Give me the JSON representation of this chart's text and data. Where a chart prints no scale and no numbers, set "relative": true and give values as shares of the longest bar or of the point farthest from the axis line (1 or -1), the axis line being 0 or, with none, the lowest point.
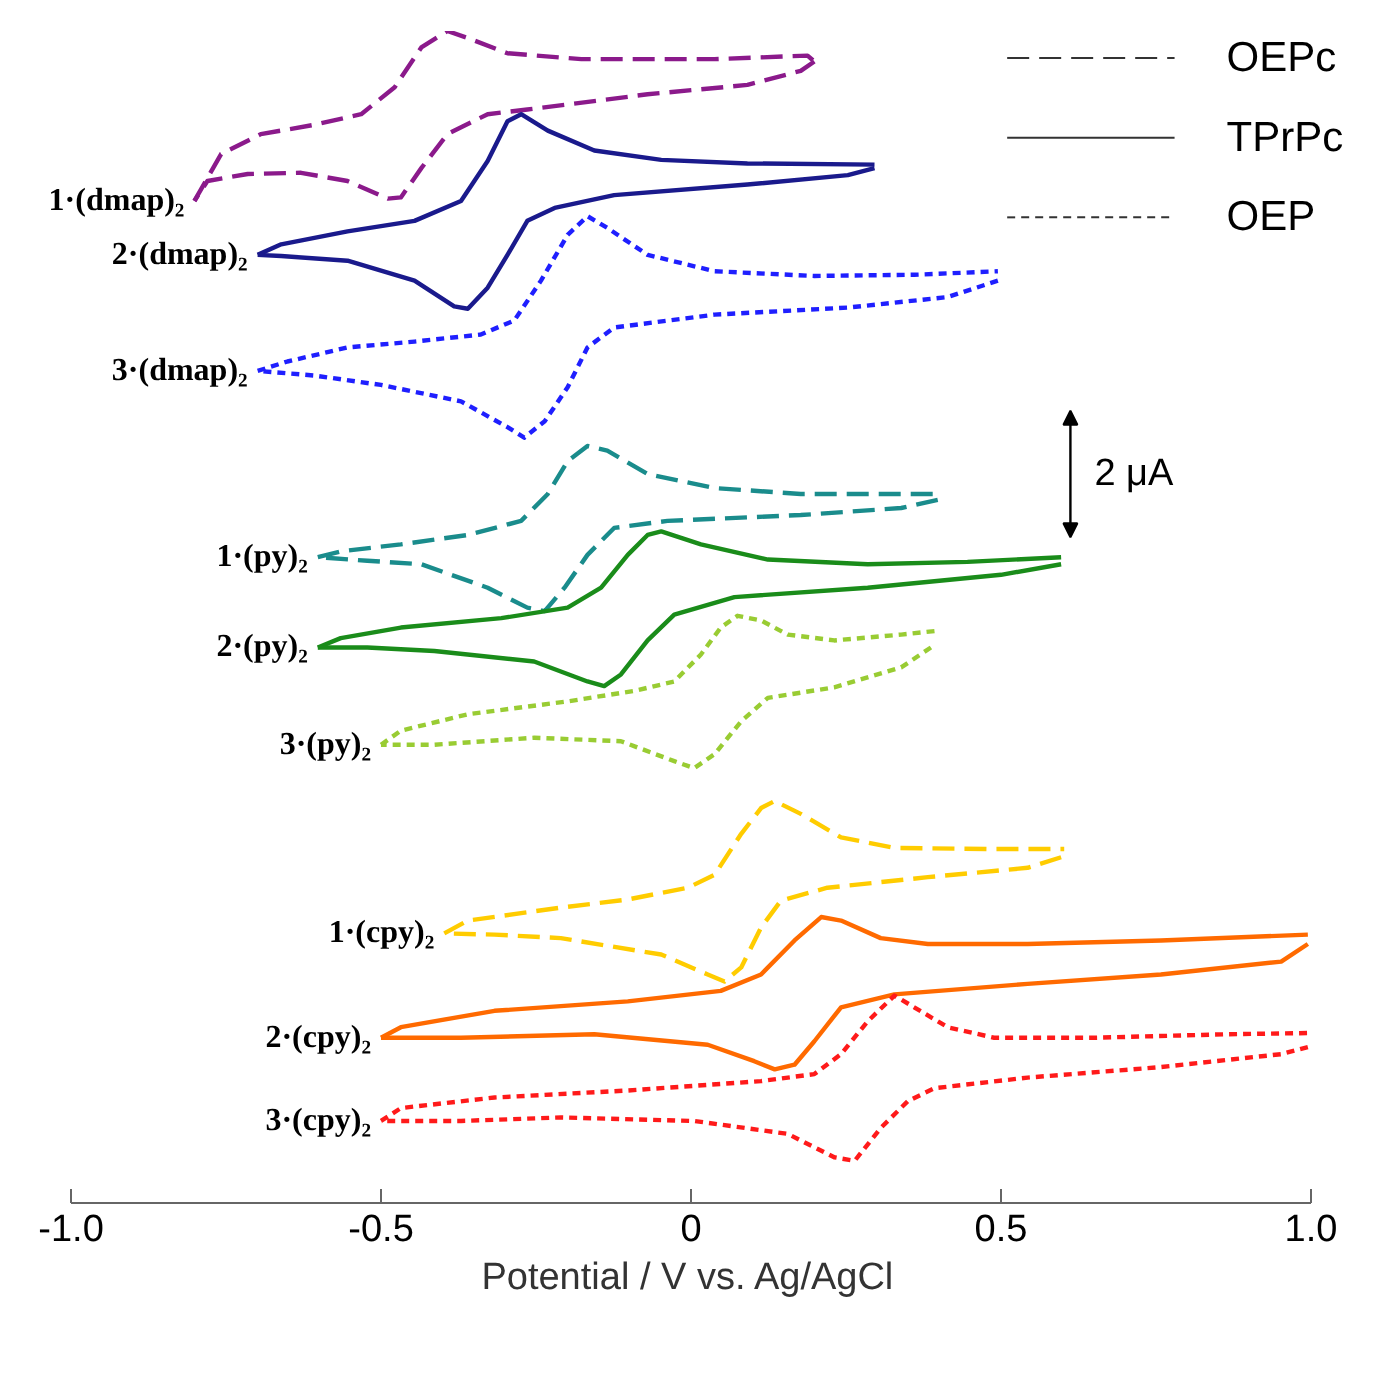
{
  "chart_data": {
    "type": "line",
    "relative": true,
    "xlabel": "Potential  /  V vs. Ag/AgCl",
    "xlim": [
      -1.0,
      1.0
    ],
    "xticks": [
      {
        "value": -1.0,
        "label": "-1.0"
      },
      {
        "value": -0.5,
        "label": "-0.5"
      },
      {
        "value": 0,
        "label": "0"
      },
      {
        "value": 0.5,
        "label": "0.5"
      },
      {
        "value": 1.0,
        "label": "1.0"
      }
    ],
    "tick_labels": "x",
    "grid": false,
    "annotations": [
      "OEPc",
      "TPrPc",
      "OEP",
      "2 μA"
    ],
    "series": [
      {
        "name": "1·(dmap)₂",
        "color": "#8b1a8b",
        "line_style": "dashed",
        "x": [
          -0.801,
          -0.758,
          -0.694,
          -0.607,
          -0.532,
          -0.478,
          -0.435,
          -0.393,
          -0.36,
          -0.296,
          -0.177,
          0.038,
          0.188,
          0.199
        ],
        "values": [
          0.855,
          0.895,
          0.912,
          0.92,
          0.929,
          0.952,
          0.986,
          1.0,
          0.994,
          0.981,
          0.976,
          0.976,
          0.979,
          0.974
        ]
      },
      {
        "color": "#8b1a8b",
        "line_style": "dashed",
        "x": [
          0.199,
          0.177,
          0.091,
          -0.07,
          -0.264,
          -0.328,
          -0.393,
          -0.435,
          -0.468,
          -0.489,
          -0.554,
          -0.629,
          -0.715,
          -0.78,
          -0.801
        ],
        "values": [
          0.974,
          0.966,
          0.954,
          0.946,
          0.933,
          0.929,
          0.912,
          0.883,
          0.858,
          0.857,
          0.872,
          0.879,
          0.878,
          0.872,
          0.855
        ]
      },
      {
        "name": "2·(dmap)₂",
        "color": "#1a1a8c",
        "line_style": "solid",
        "x": [
          -0.699,
          -0.661,
          -0.554,
          -0.446,
          -0.371,
          -0.328,
          -0.296,
          -0.274,
          -0.231,
          -0.156,
          -0.048,
          0.091,
          0.296
        ],
        "values": [
          0.809,
          0.818,
          0.829,
          0.838,
          0.855,
          0.889,
          0.923,
          0.929,
          0.915,
          0.898,
          0.89,
          0.887,
          0.886
        ]
      },
      {
        "color": "#1a1a8c",
        "line_style": "solid",
        "x": [
          0.296,
          0.253,
          0.091,
          -0.124,
          -0.22,
          -0.264,
          -0.296,
          -0.328,
          -0.36,
          -0.382,
          -0.446,
          -0.554,
          -0.661,
          -0.699
        ],
        "values": [
          0.883,
          0.877,
          0.869,
          0.86,
          0.849,
          0.838,
          0.809,
          0.781,
          0.763,
          0.765,
          0.787,
          0.804,
          0.808,
          0.809
        ]
      },
      {
        "name": "3·(dmap)₂",
        "color": "#1f1fff",
        "line_style": "dotted",
        "x": [
          -0.699,
          -0.651,
          -0.554,
          -0.446,
          -0.339,
          -0.285,
          -0.242,
          -0.199,
          -0.167,
          -0.135,
          -0.07,
          0.038,
          0.199,
          0.36,
          0.495
        ],
        "values": [
          0.71,
          0.718,
          0.73,
          0.735,
          0.741,
          0.753,
          0.787,
          0.826,
          0.842,
          0.832,
          0.809,
          0.795,
          0.791,
          0.792,
          0.795
        ]
      },
      {
        "color": "#1f1fff",
        "line_style": "dotted",
        "x": [
          0.495,
          0.414,
          0.253,
          0.038,
          -0.124,
          -0.167,
          -0.199,
          -0.236,
          -0.269,
          -0.296,
          -0.371,
          -0.5,
          -0.607,
          -0.699
        ],
        "values": [
          0.787,
          0.773,
          0.764,
          0.758,
          0.747,
          0.73,
          0.696,
          0.667,
          0.653,
          0.662,
          0.684,
          0.698,
          0.706,
          0.71
        ]
      },
      {
        "name": "1·(py)₂",
        "color": "#1a8c8c",
        "line_style": "dashed",
        "x": [
          -0.602,
          -0.565,
          -0.468,
          -0.36,
          -0.274,
          -0.231,
          -0.199,
          -0.167,
          -0.135,
          -0.07,
          0.038,
          0.177,
          0.393,
          0.398
        ],
        "values": [
          0.551,
          0.556,
          0.562,
          0.57,
          0.582,
          0.605,
          0.633,
          0.646,
          0.642,
          0.622,
          0.61,
          0.605,
          0.605,
          0.6
        ]
      },
      {
        "color": "#1a8c8c",
        "line_style": "dashed",
        "x": [
          0.398,
          0.339,
          0.177,
          -0.038,
          -0.124,
          -0.167,
          -0.204,
          -0.236,
          -0.264,
          -0.328,
          -0.435,
          -0.522,
          -0.602
        ],
        "values": [
          0.6,
          0.593,
          0.587,
          0.582,
          0.576,
          0.553,
          0.525,
          0.505,
          0.508,
          0.525,
          0.545,
          0.548,
          0.551
        ]
      },
      {
        "name": "2·(py)₂",
        "color": "#1a8c1a",
        "line_style": "solid",
        "x": [
          -0.602,
          -0.565,
          -0.468,
          -0.306,
          -0.199,
          -0.145,
          -0.102,
          -0.07,
          -0.048,
          0.016,
          0.124,
          0.285,
          0.446,
          0.597
        ],
        "values": [
          0.474,
          0.482,
          0.491,
          0.499,
          0.508,
          0.525,
          0.553,
          0.57,
          0.573,
          0.562,
          0.549,
          0.545,
          0.547,
          0.551
        ]
      },
      {
        "color": "#1a8c1a",
        "line_style": "solid",
        "x": [
          0.597,
          0.5,
          0.285,
          0.07,
          -0.027,
          -0.07,
          -0.113,
          -0.14,
          -0.167,
          -0.253,
          -0.414,
          -0.522,
          -0.602
        ],
        "values": [
          0.545,
          0.536,
          0.525,
          0.517,
          0.502,
          0.48,
          0.451,
          0.441,
          0.445,
          0.462,
          0.471,
          0.474,
          0.474
        ]
      },
      {
        "name": "3·(py)₂",
        "color": "#99cc33",
        "line_style": "dotted",
        "x": [
          -0.5,
          -0.468,
          -0.36,
          -0.199,
          -0.091,
          -0.027,
          0.016,
          0.048,
          0.075,
          0.113,
          0.156,
          0.231,
          0.339,
          0.393
        ],
        "values": [
          0.391,
          0.403,
          0.417,
          0.428,
          0.437,
          0.445,
          0.468,
          0.491,
          0.501,
          0.497,
          0.485,
          0.48,
          0.485,
          0.488
        ]
      },
      {
        "color": "#99cc33",
        "line_style": "dotted",
        "x": [
          0.387,
          0.339,
          0.231,
          0.124,
          0.081,
          0.038,
          0.005,
          -0.027,
          -0.113,
          -0.253,
          -0.414,
          -0.5
        ],
        "values": [
          0.474,
          0.457,
          0.44,
          0.431,
          0.411,
          0.383,
          0.371,
          0.377,
          0.394,
          0.397,
          0.391,
          0.391
        ]
      },
      {
        "name": "1·(cpy)₂",
        "color": "#ffcc00",
        "line_style": "dashed",
        "x": [
          -0.398,
          -0.36,
          -0.21,
          -0.102,
          -0.005,
          0.038,
          0.081,
          0.113,
          0.135,
          0.177,
          0.242,
          0.328,
          0.489,
          0.602
        ],
        "values": [
          0.23,
          0.241,
          0.252,
          0.259,
          0.269,
          0.28,
          0.315,
          0.337,
          0.343,
          0.332,
          0.312,
          0.303,
          0.302,
          0.302
        ]
      },
      {
        "color": "#ffcc00",
        "line_style": "dashed",
        "x": [
          0.597,
          0.543,
          0.382,
          0.22,
          0.145,
          0.113,
          0.081,
          0.054,
          0.027,
          -0.048,
          -0.21,
          -0.317,
          -0.398
        ],
        "values": [
          0.295,
          0.286,
          0.278,
          0.269,
          0.258,
          0.235,
          0.201,
          0.189,
          0.195,
          0.212,
          0.226,
          0.229,
          0.23
        ]
      },
      {
        "name": "2·(cpy)₂",
        "color": "#ff6a00",
        "line_style": "solid",
        "x": [
          -0.5,
          -0.468,
          -0.317,
          -0.102,
          0.048,
          0.113,
          0.167,
          0.21,
          0.242,
          0.306,
          0.382,
          0.543,
          0.758,
          0.995
        ],
        "values": [
          0.141,
          0.15,
          0.164,
          0.172,
          0.181,
          0.195,
          0.224,
          0.244,
          0.241,
          0.226,
          0.221,
          0.221,
          0.224,
          0.229
        ]
      },
      {
        "color": "#ff6a00",
        "line_style": "solid",
        "x": [
          0.995,
          0.952,
          0.758,
          0.543,
          0.328,
          0.242,
          0.199,
          0.167,
          0.135,
          0.102,
          0.027,
          -0.156,
          -0.371,
          -0.5
        ],
        "values": [
          0.221,
          0.206,
          0.195,
          0.187,
          0.178,
          0.167,
          0.138,
          0.118,
          0.114,
          0.121,
          0.135,
          0.144,
          0.141,
          0.141
        ]
      },
      {
        "name": "3·(cpy)₂",
        "color": "#ff1a1a",
        "line_style": "dotted",
        "x": [
          -0.5,
          -0.468,
          -0.317,
          -0.102,
          0.113,
          0.199,
          0.242,
          0.285,
          0.328,
          0.36,
          0.414,
          0.489,
          0.651,
          0.865,
          0.995
        ],
        "values": [
          0.07,
          0.081,
          0.09,
          0.096,
          0.104,
          0.11,
          0.127,
          0.155,
          0.177,
          0.167,
          0.15,
          0.141,
          0.141,
          0.144,
          0.145
        ]
      },
      {
        "color": "#ff1a1a",
        "line_style": "dotted",
        "x": [
          0.995,
          0.952,
          0.758,
          0.543,
          0.393,
          0.35,
          0.306,
          0.264,
          0.231,
          0.156,
          0.005,
          -0.21,
          -0.371,
          -0.5
        ],
        "values": [
          0.133,
          0.127,
          0.116,
          0.107,
          0.098,
          0.087,
          0.064,
          0.036,
          0.039,
          0.059,
          0.07,
          0.073,
          0.07,
          0.07
        ]
      }
    ]
  }
}
